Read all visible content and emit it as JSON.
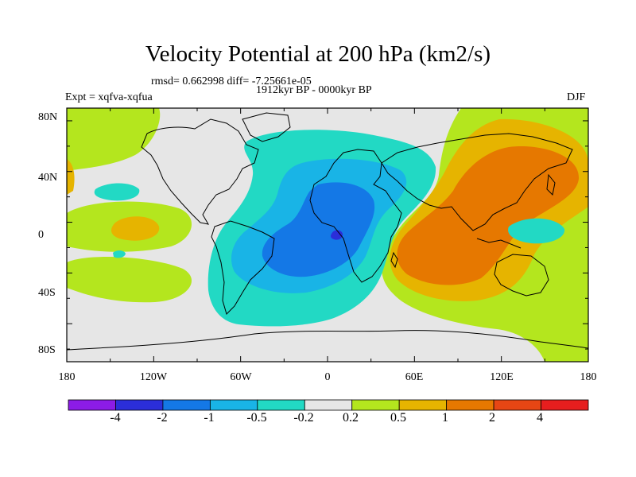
{
  "title": "Velocity Potential at 200 hPa (km2/s)",
  "stats_line": "rmsd= 0.662998 diff= -7.25661e-05",
  "period": "1912kyr BP - 0000kyr BP",
  "experiment": "Expt = xqfva-xqfua",
  "season": "DJF",
  "map": {
    "projection": "cylindrical equidistant",
    "lon_range": [
      -180,
      180
    ],
    "lat_range": [
      -90,
      90
    ],
    "lat_tick_labels": [
      "80N",
      "40N",
      "0",
      "40S",
      "80S"
    ],
    "lon_tick_labels": [
      "180",
      "120W",
      "60W",
      "0",
      "60E",
      "120E",
      "180"
    ],
    "field": "velocity potential difference",
    "units": "km2/s"
  },
  "colorbar": {
    "levels": [
      "-4",
      "-2",
      "-1",
      "-0.5",
      "-0.2",
      "0.2",
      "0.5",
      "1",
      "2",
      "4"
    ],
    "colors": [
      "#8c1ce6",
      "#2b2ed9",
      "#1478e6",
      "#19b4e6",
      "#22d9c4",
      "#e6e6e6",
      "#b4e61e",
      "#e6b400",
      "#e67800",
      "#e64614",
      "#e61e1e"
    ]
  }
}
